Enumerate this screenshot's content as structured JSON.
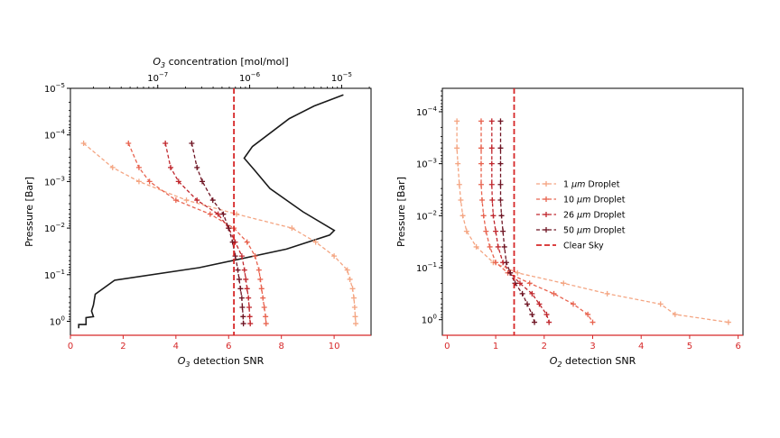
{
  "colors": {
    "c1": "#f4a582",
    "c10": "#e8634f",
    "c26": "#c0272d",
    "c50": "#6e1423",
    "clear": "#d62728",
    "profile": "#1a1a1a",
    "bottom_axis": "#d62728"
  },
  "chart_data": [
    {
      "type": "line",
      "panel": "left",
      "xlabel": "O₃ detection SNR",
      "ylabel": "Pressure [Bar]",
      "top_xlabel": "O₃ concentration [mol/mol]",
      "xlim": [
        0,
        11.4
      ],
      "ylim_log10": [
        0.3,
        -5.0
      ],
      "xticks": [
        0,
        2,
        4,
        6,
        8,
        10
      ],
      "xtick_labels": [
        "0",
        "2",
        "4",
        "6",
        "8",
        "10"
      ],
      "yticks": [
        0,
        -1,
        -2,
        -3,
        -4,
        -5
      ],
      "ytick_labels": [
        "10⁰",
        "10⁻¹",
        "10⁻²",
        "10⁻³",
        "10⁻⁴",
        "10⁻⁵"
      ],
      "top_xlim_log10": [
        -7.95,
        -4.68
      ],
      "top_xticks": [
        -7,
        -6,
        -5
      ],
      "top_xtick_labels": [
        "10⁻⁷",
        "10⁻⁶",
        "10⁻⁵"
      ],
      "pressure_log10": [
        -3.82,
        -3.3,
        -3.0,
        -2.6,
        -2.3,
        -2.0,
        -1.7,
        -1.4,
        -1.1,
        -0.9,
        -0.7,
        -0.5,
        -0.3,
        -0.1,
        0.05
      ],
      "series": [
        {
          "name": "1 µm Droplet",
          "color_key": "c1",
          "snr": [
            0.5,
            1.6,
            2.6,
            4.4,
            6.3,
            8.4,
            9.3,
            10.0,
            10.5,
            10.6,
            10.7,
            10.75,
            10.78,
            10.8,
            10.82
          ]
        },
        {
          "name": "10 µm Droplet",
          "color_key": "c10",
          "snr": [
            2.2,
            2.6,
            3.0,
            4.0,
            5.3,
            6.2,
            6.7,
            7.0,
            7.15,
            7.2,
            7.25,
            7.3,
            7.35,
            7.4,
            7.42
          ]
        },
        {
          "name": "26 µm Droplet",
          "color_key": "c26",
          "snr": [
            3.6,
            3.8,
            4.1,
            4.8,
            5.6,
            6.0,
            6.25,
            6.5,
            6.6,
            6.65,
            6.7,
            6.75,
            6.78,
            6.8,
            6.82
          ]
        },
        {
          "name": "50 µm Droplet",
          "color_key": "c50",
          "snr": [
            4.6,
            4.8,
            5.0,
            5.4,
            5.8,
            6.0,
            6.15,
            6.25,
            6.35,
            6.4,
            6.45,
            6.5,
            6.52,
            6.55,
            6.56
          ]
        }
      ],
      "clear_sky_snr": 6.2,
      "o3_profile": {
        "name": "O₃ concentration",
        "conc_log10": [
          -4.98,
          -5.3,
          -5.57,
          -5.97,
          -6.06,
          -5.95,
          -5.78,
          -5.42,
          -5.08,
          -5.13,
          -5.6,
          -6.55,
          -7.47,
          -7.68,
          -7.7,
          -7.72,
          -7.7,
          -7.78,
          -7.78,
          -7.86,
          -7.86
        ],
        "pressure_log10": [
          -4.86,
          -4.62,
          -4.35,
          -3.75,
          -3.5,
          -3.25,
          -2.85,
          -2.35,
          -1.95,
          -1.85,
          -1.55,
          -1.15,
          -0.88,
          -0.58,
          -0.35,
          -0.22,
          -0.1,
          -0.08,
          0.07,
          0.07,
          0.15
        ]
      }
    },
    {
      "type": "line",
      "panel": "right",
      "xlabel": "O₂ detection SNR",
      "ylabel": "Pressure [Bar]",
      "xlim": [
        -0.1,
        6.1
      ],
      "ylim_log10": [
        0.3,
        -4.45
      ],
      "xticks": [
        0,
        1,
        2,
        3,
        4,
        5,
        6
      ],
      "xtick_labels": [
        "0",
        "1",
        "2",
        "3",
        "4",
        "5",
        "6"
      ],
      "yticks": [
        0,
        -1,
        -2,
        -3,
        -4
      ],
      "ytick_labels": [
        "10⁰",
        "10⁻¹",
        "10⁻²",
        "10⁻³",
        "10⁻⁴"
      ],
      "pressure_log10": [
        -3.82,
        -3.3,
        -3.0,
        -2.6,
        -2.3,
        -2.0,
        -1.7,
        -1.4,
        -1.1,
        -0.9,
        -0.7,
        -0.5,
        -0.3,
        -0.1,
        0.05
      ],
      "series": [
        {
          "name": "1 µm Droplet",
          "color_key": "c1",
          "snr": [
            0.2,
            0.2,
            0.22,
            0.25,
            0.28,
            0.32,
            0.4,
            0.6,
            0.95,
            1.45,
            2.4,
            3.3,
            4.4,
            4.7,
            5.8
          ]
        },
        {
          "name": "10 µm Droplet",
          "color_key": "c10",
          "snr": [
            0.7,
            0.7,
            0.7,
            0.7,
            0.72,
            0.75,
            0.8,
            0.88,
            1.0,
            1.25,
            1.7,
            2.2,
            2.6,
            2.9,
            3.0
          ]
        },
        {
          "name": "26 µm Droplet",
          "color_key": "c26",
          "snr": [
            0.92,
            0.92,
            0.92,
            0.92,
            0.93,
            0.95,
            1.0,
            1.05,
            1.15,
            1.3,
            1.5,
            1.75,
            1.9,
            2.05,
            2.1
          ]
        },
        {
          "name": "50 µm Droplet",
          "color_key": "c50",
          "snr": [
            1.1,
            1.1,
            1.1,
            1.1,
            1.1,
            1.12,
            1.15,
            1.18,
            1.22,
            1.3,
            1.4,
            1.55,
            1.65,
            1.75,
            1.8
          ]
        }
      ],
      "clear_sky_snr": 1.38,
      "legend": {
        "location": "center",
        "entries": [
          "1 µm Droplet",
          "10 µm Droplet",
          "26 µm Droplet",
          "50 µm Droplet",
          "Clear Sky"
        ]
      }
    }
  ]
}
